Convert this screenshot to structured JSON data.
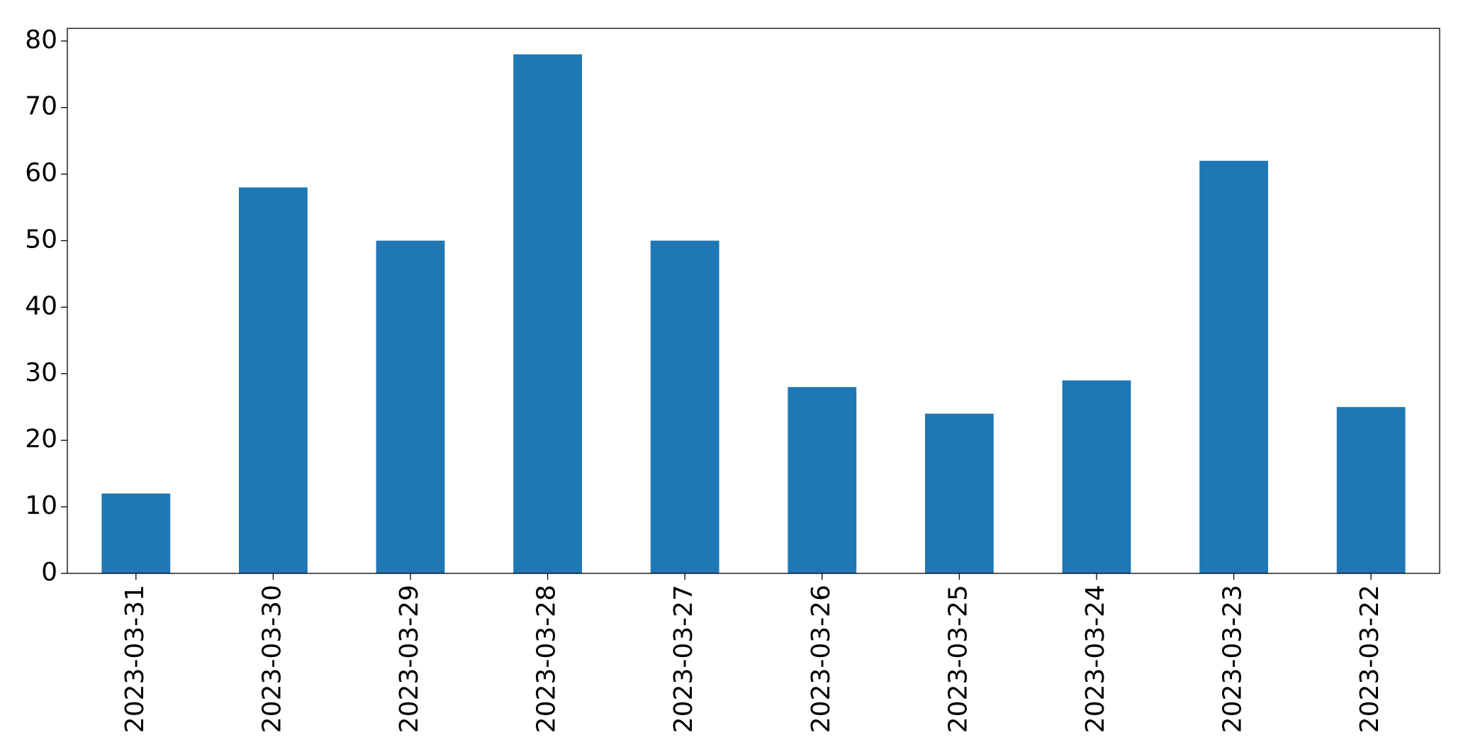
{
  "chart_data": {
    "type": "bar",
    "categories": [
      "2023-03-31",
      "2023-03-30",
      "2023-03-29",
      "2023-03-28",
      "2023-03-27",
      "2023-03-26",
      "2023-03-25",
      "2023-03-24",
      "2023-03-23",
      "2023-03-22"
    ],
    "values": [
      12,
      58,
      50,
      78,
      50,
      28,
      24,
      29,
      62,
      25
    ],
    "color": "#1f77b4",
    "ylim": [
      0,
      81.9
    ],
    "yticks": [
      0,
      10,
      20,
      30,
      40,
      50,
      60,
      70,
      80
    ],
    "grid": false
  }
}
